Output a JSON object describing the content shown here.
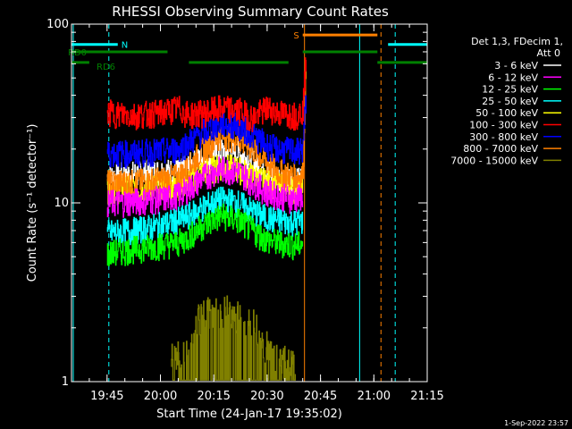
{
  "chart_data": {
    "type": "line",
    "title": "RHESSI Observing Summary Count Rates",
    "xlabel": "Start Time (24-Jan-17 19:35:02)",
    "ylabel": "Count Rate (s⁻¹ detector⁻¹)",
    "y_scale": "log",
    "ylim": [
      1,
      100
    ],
    "xlim_minutes": [
      1175,
      1275
    ],
    "x_ticks": [
      {
        "label": "19:45",
        "minute": 1185
      },
      {
        "label": "20:00",
        "minute": 1200
      },
      {
        "label": "20:15",
        "minute": 1215
      },
      {
        "label": "20:30",
        "minute": 1230
      },
      {
        "label": "20:45",
        "minute": 1245
      },
      {
        "label": "21:00",
        "minute": 1260
      },
      {
        "label": "21:15",
        "minute": 1275
      }
    ],
    "y_ticks": [
      {
        "label": "1",
        "value": 1
      },
      {
        "label": "10",
        "value": 10
      },
      {
        "label": "100",
        "value": 100
      }
    ],
    "legend_header": [
      "Det 1,3, FDecim 1,",
      "Att 0"
    ],
    "legend_position": "right",
    "series": [
      {
        "name": "3 - 6 keV",
        "color": "#ffffff",
        "points": [
          [
            1185,
            14
          ],
          [
            1192,
            14.5
          ],
          [
            1200,
            15
          ],
          [
            1205,
            15
          ],
          [
            1208,
            16
          ],
          [
            1212,
            18
          ],
          [
            1217,
            19.5
          ],
          [
            1222,
            19
          ],
          [
            1226,
            17
          ],
          [
            1230,
            15
          ],
          [
            1233,
            14
          ],
          [
            1238,
            13
          ],
          [
            1240,
            14
          ]
        ]
      },
      {
        "name": "6 - 12 keV",
        "color": "#ff00ff",
        "points": [
          [
            1185,
            10
          ],
          [
            1192,
            10.2
          ],
          [
            1200,
            10.5
          ],
          [
            1205,
            11
          ],
          [
            1208,
            12
          ],
          [
            1212,
            14
          ],
          [
            1217,
            15.5
          ],
          [
            1222,
            15
          ],
          [
            1226,
            13
          ],
          [
            1230,
            11.5
          ],
          [
            1233,
            11
          ],
          [
            1238,
            10.5
          ],
          [
            1240,
            11
          ]
        ]
      },
      {
        "name": "12 - 25 keV",
        "color": "#00ff00",
        "points": [
          [
            1185,
            5.2
          ],
          [
            1192,
            5.5
          ],
          [
            1200,
            5.8
          ],
          [
            1205,
            6
          ],
          [
            1208,
            6.5
          ],
          [
            1212,
            7.5
          ],
          [
            1217,
            8.5
          ],
          [
            1222,
            8
          ],
          [
            1226,
            7
          ],
          [
            1230,
            6.2
          ],
          [
            1233,
            6
          ],
          [
            1238,
            5.8
          ],
          [
            1240,
            6
          ]
        ]
      },
      {
        "name": "25 - 50 keV",
        "color": "#00ffff",
        "points": [
          [
            1185,
            6.8
          ],
          [
            1192,
            7
          ],
          [
            1200,
            7.5
          ],
          [
            1205,
            8
          ],
          [
            1208,
            8.5
          ],
          [
            1212,
            9.5
          ],
          [
            1217,
            10.5
          ],
          [
            1222,
            10
          ],
          [
            1226,
            9
          ],
          [
            1230,
            8.2
          ],
          [
            1233,
            8
          ],
          [
            1238,
            7.8
          ],
          [
            1240,
            8
          ]
        ]
      },
      {
        "name": "50 - 100 keV",
        "color": "#ffff00",
        "points": [
          [
            1185,
            12
          ],
          [
            1192,
            12
          ],
          [
            1200,
            12.5
          ],
          [
            1205,
            12.5
          ],
          [
            1208,
            13.5
          ],
          [
            1212,
            15
          ],
          [
            1217,
            16
          ],
          [
            1222,
            15.5
          ],
          [
            1226,
            14
          ],
          [
            1230,
            13
          ],
          [
            1233,
            12.5
          ],
          [
            1238,
            12
          ],
          [
            1240,
            12.5
          ]
        ]
      },
      {
        "name": "100 - 300 keV",
        "color": "#ff0000",
        "points": [
          [
            1185,
            32
          ],
          [
            1192,
            31
          ],
          [
            1200,
            32
          ],
          [
            1205,
            34
          ],
          [
            1208,
            31
          ],
          [
            1212,
            32
          ],
          [
            1217,
            34
          ],
          [
            1222,
            33
          ],
          [
            1226,
            30
          ],
          [
            1230,
            34
          ],
          [
            1233,
            32
          ],
          [
            1238,
            31
          ],
          [
            1240,
            33
          ],
          [
            1241,
            70
          ]
        ]
      },
      {
        "name": "300 - 800 keV",
        "color": "#0000ff",
        "points": [
          [
            1185,
            19
          ],
          [
            1192,
            19
          ],
          [
            1200,
            19.5
          ],
          [
            1205,
            20
          ],
          [
            1208,
            22
          ],
          [
            1212,
            25
          ],
          [
            1217,
            28
          ],
          [
            1222,
            27
          ],
          [
            1226,
            24
          ],
          [
            1230,
            21
          ],
          [
            1233,
            20
          ],
          [
            1238,
            19.5
          ],
          [
            1240,
            20
          ],
          [
            1241,
            40
          ]
        ]
      },
      {
        "name": "800 - 7000 keV",
        "color": "#ff8000",
        "points": [
          [
            1185,
            13
          ],
          [
            1192,
            13
          ],
          [
            1200,
            13.5
          ],
          [
            1205,
            14
          ],
          [
            1208,
            16
          ],
          [
            1212,
            20
          ],
          [
            1217,
            24
          ],
          [
            1222,
            23
          ],
          [
            1226,
            20
          ],
          [
            1230,
            17
          ],
          [
            1233,
            15
          ],
          [
            1238,
            14
          ],
          [
            1240,
            14.5
          ],
          [
            1241,
            60
          ]
        ]
      },
      {
        "name": "7000 - 15000 keV",
        "color": "#808000",
        "points": [
          [
            1203,
            1.5
          ],
          [
            1207,
            1.6
          ],
          [
            1211,
            2.6
          ],
          [
            1216,
            2.8
          ],
          [
            1221,
            2.7
          ],
          [
            1226,
            2.4
          ],
          [
            1229,
            1.8
          ],
          [
            1233,
            1.5
          ],
          [
            1238,
            1.4
          ]
        ]
      }
    ],
    "flag_lines": [
      {
        "label": "N",
        "color": "#00ffff",
        "value": 77,
        "segments": [
          [
            1175,
            1188
          ],
          [
            1264,
            1275
          ]
        ]
      },
      {
        "label": "S",
        "color": "#ff8000",
        "value": 87,
        "segments": [
          [
            1240,
            1261
          ]
        ]
      },
      {
        "label": "RD0",
        "color": "#008000",
        "value": 70,
        "segments": [
          [
            1175,
            1202
          ],
          [
            1240,
            1261
          ]
        ]
      },
      {
        "label": "RD6",
        "color": "#008000",
        "value": 61,
        "segments": [
          [
            1175,
            1180
          ],
          [
            1208,
            1236
          ],
          [
            1261,
            1275
          ]
        ]
      }
    ],
    "vlines": [
      {
        "minute": 1175.5,
        "color": "#00ffff",
        "style": "solid"
      },
      {
        "minute": 1185.5,
        "color": "#00ffff",
        "style": "dashed"
      },
      {
        "minute": 1240.5,
        "color": "#ff8000",
        "style": "solid"
      },
      {
        "minute": 1256,
        "color": "#00ffff",
        "style": "solid"
      },
      {
        "minute": 1262,
        "color": "#ff8000",
        "style": "dashed"
      },
      {
        "minute": 1266,
        "color": "#00ffff",
        "style": "dashed"
      }
    ],
    "timestamp": "1-Sep-2022 23:57"
  }
}
